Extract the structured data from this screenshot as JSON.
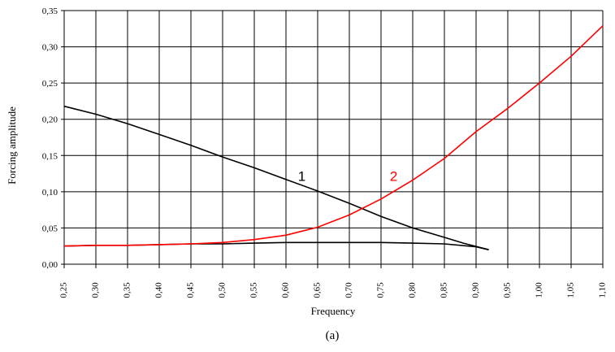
{
  "chart_data": {
    "type": "line",
    "xlabel": "Frequency",
    "ylabel": "Forcing amplitude",
    "caption": "(a)",
    "xlim": [
      0.25,
      1.1
    ],
    "ylim": [
      0.0,
      0.35
    ],
    "x_ticks": [
      "0,25",
      "0,30",
      "0,35",
      "0,40",
      "0,45",
      "0,50",
      "0,55",
      "0,60",
      "0,65",
      "0,70",
      "0,75",
      "0,80",
      "0,85",
      "0,90",
      "0,95",
      "1,00",
      "1,05",
      "1,10"
    ],
    "y_ticks": [
      "0,00",
      "0,05",
      "0,10",
      "0,15",
      "0,20",
      "0,25",
      "0,30",
      "0,35"
    ],
    "grid": true,
    "series": [
      {
        "label": "1",
        "color": "#000000",
        "label_at": {
          "x": 0.625,
          "y": 0.115
        },
        "branches": [
          {
            "x": [
              0.25,
              0.3,
              0.35,
              0.4,
              0.45,
              0.5,
              0.55,
              0.6,
              0.65,
              0.7,
              0.75,
              0.8,
              0.85,
              0.88,
              0.92
            ],
            "y": [
              0.218,
              0.207,
              0.194,
              0.179,
              0.164,
              0.148,
              0.133,
              0.117,
              0.101,
              0.084,
              0.066,
              0.05,
              0.037,
              0.029,
              0.02
            ]
          },
          {
            "x": [
              0.25,
              0.3,
              0.35,
              0.4,
              0.45,
              0.5,
              0.55,
              0.6,
              0.65,
              0.7,
              0.75,
              0.8,
              0.85,
              0.9,
              0.92
            ],
            "y": [
              0.025,
              0.026,
              0.026,
              0.027,
              0.028,
              0.028,
              0.029,
              0.03,
              0.03,
              0.03,
              0.03,
              0.029,
              0.028,
              0.024,
              0.02
            ]
          }
        ]
      },
      {
        "label": "2",
        "color": "#ff0000",
        "label_at": {
          "x": 0.77,
          "y": 0.115
        },
        "branches": [
          {
            "x": [
              0.25,
              0.3,
              0.35,
              0.4,
              0.45,
              0.5,
              0.55,
              0.6,
              0.65,
              0.7,
              0.75,
              0.8,
              0.85,
              0.9,
              0.95,
              1.0,
              1.05,
              1.1
            ],
            "y": [
              0.025,
              0.026,
              0.026,
              0.027,
              0.028,
              0.03,
              0.034,
              0.04,
              0.051,
              0.068,
              0.09,
              0.116,
              0.146,
              0.183,
              0.215,
              0.25,
              0.287,
              0.329
            ]
          }
        ]
      }
    ]
  }
}
